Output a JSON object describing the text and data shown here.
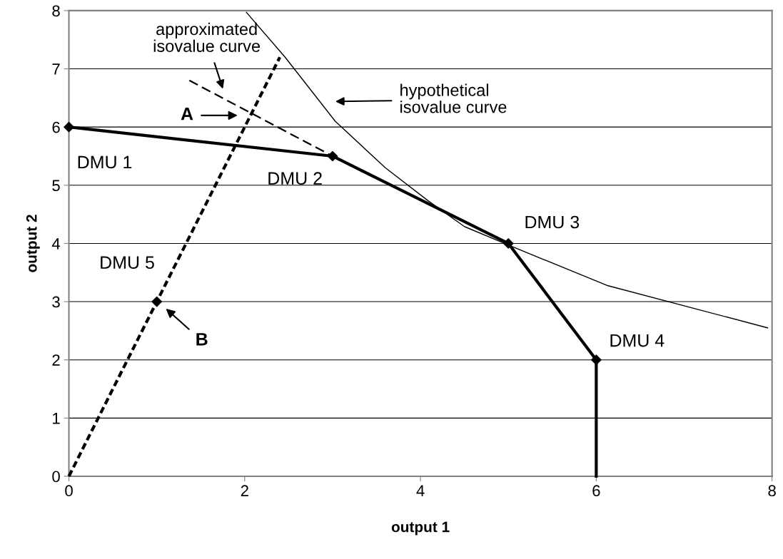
{
  "chart_data": {
    "type": "line",
    "xlabel": "output 1",
    "ylabel": "output 2",
    "xlim": [
      0,
      8
    ],
    "ylim": [
      0,
      8
    ],
    "xticks": [
      0,
      2,
      4,
      6,
      8
    ],
    "yticks": [
      0,
      1,
      2,
      3,
      4,
      5,
      6,
      7,
      8
    ],
    "grid": "y",
    "legend": false,
    "series": [
      {
        "color": "#000000",
        "line_style": "solid",
        "marker": "none",
        "x": [
          0,
          3,
          5,
          6,
          6
        ],
        "values": [
          6,
          5.5,
          4,
          2,
          0
        ]
      },
      {
        "color": "#000000",
        "line_style": "dotted",
        "marker": "none",
        "x": [
          0,
          2.4
        ],
        "values": [
          0,
          7.2
        ]
      },
      {
        "color": "#000000",
        "line_style": "dashed",
        "marker": "none",
        "x": [
          1.37,
          3
        ],
        "values": [
          6.8,
          5.5
        ]
      },
      {
        "color": "#000000",
        "line_style": "solid",
        "marker": "none",
        "x": [
          2.02,
          2.46,
          3.03,
          3.6,
          4.09,
          4.5,
          5.02,
          6.12,
          7.95
        ],
        "values": [
          7.97,
          7.2,
          6.1,
          5.3,
          4.73,
          4.29,
          3.96,
          3.28,
          2.55
        ]
      },
      {
        "type": "scatter",
        "color": "#000000",
        "marker": "diamond",
        "x": [
          0,
          3,
          5,
          6,
          1
        ],
        "values": [
          6,
          5.5,
          4,
          2,
          3
        ]
      }
    ],
    "annotations": [
      "approximated\nisovalue curve",
      "hypothetical\nisovalue curve",
      "A",
      "B",
      {
        "text": "DMU 1",
        "x": 0,
        "y": 6
      },
      {
        "text": "DMU 2",
        "x": 3,
        "y": 5.5
      },
      {
        "text": "DMU 3",
        "x": 5,
        "y": 4
      },
      {
        "text": "DMU 4",
        "x": 6,
        "y": 2
      },
      {
        "text": "DMU 5",
        "x": 1,
        "y": 3
      }
    ]
  }
}
